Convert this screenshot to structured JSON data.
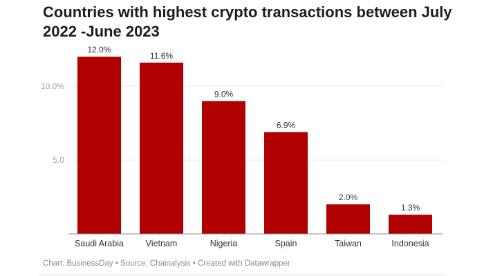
{
  "chart_data": {
    "type": "bar",
    "title": "Countries with highest crypto transactions between July 2022 -June 2023",
    "categories": [
      "Saudi Arabia",
      "Vietnam",
      "Nigeria",
      "Spain",
      "Taiwan",
      "Indonesia"
    ],
    "values": [
      12.0,
      11.6,
      9.0,
      6.9,
      2.0,
      1.3
    ],
    "data_labels": [
      "12.0%",
      "11.6%",
      "9.0%",
      "6.9%",
      "2.0%",
      "1.3%"
    ],
    "y_ticks": [
      {
        "value": 5,
        "label": "5.0"
      },
      {
        "value": 10,
        "label": "10.0%"
      }
    ],
    "ylim": [
      0,
      12
    ],
    "xlabel": "",
    "ylabel": "",
    "grid": true,
    "bar_color": "#b00000"
  },
  "footer": {
    "text": "Chart: BusinessDay  • Source: Chainalysis • Created with Datawrapper"
  }
}
